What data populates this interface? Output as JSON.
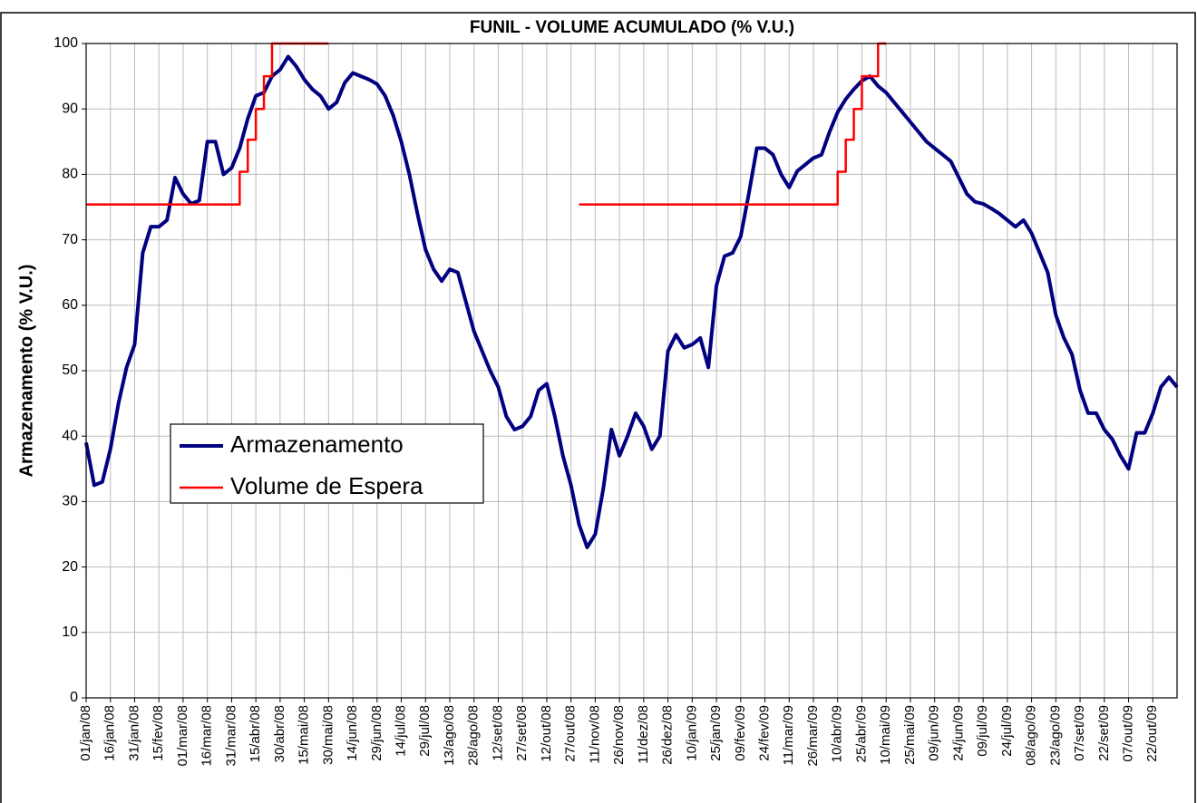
{
  "chart_data": {
    "type": "line",
    "title": "FUNIL - VOLUME ACUMULADO (% V.U.)",
    "y_label": "Armazenamento (% V.U.)",
    "categories": [
      "01/jan/08",
      null,
      null,
      "16/jan/08",
      null,
      null,
      "31/jan/08",
      null,
      null,
      "15/fev/08",
      null,
      null,
      "01/mar/08",
      null,
      null,
      "16/mar/08",
      null,
      null,
      "31/mar/08",
      null,
      null,
      "15/abr/08",
      null,
      null,
      "30/abr/08",
      null,
      null,
      "15/mai/08",
      null,
      null,
      "30/mai/08",
      null,
      null,
      "14/jun/08",
      null,
      null,
      "29/jun/08",
      null,
      null,
      "14/jul/08",
      null,
      null,
      "29/jul/08",
      null,
      null,
      "13/ago/08",
      null,
      null,
      "28/ago/08",
      null,
      null,
      "12/set/08",
      null,
      null,
      "27/set/08",
      null,
      null,
      "12/out/08",
      null,
      null,
      "27/out/08",
      null,
      null,
      "11/nov/08",
      null,
      null,
      "26/nov/08",
      null,
      null,
      "11/dez/08",
      null,
      null,
      "26/dez/08",
      null,
      null,
      "10/jan/09",
      null,
      null,
      "25/jan/09",
      null,
      null,
      "09/fev/09",
      null,
      null,
      "24/fev/09",
      null,
      null,
      "11/mar/09",
      null,
      null,
      "26/mar/09",
      null,
      null,
      "10/abr/09",
      null,
      null,
      "25/abr/09",
      null,
      null,
      "10/mai/09",
      null,
      null,
      "25/mai/09",
      null,
      null,
      "09/jun/09",
      null,
      null,
      "24/jun/09",
      null,
      null,
      "09/jul/09",
      null,
      null,
      "24/jul/09",
      null,
      null,
      "08/ago/09",
      null,
      null,
      "23/ago/09",
      null,
      null,
      "07/set/09",
      null,
      null,
      "22/set/09",
      null,
      null,
      "07/out/09",
      null,
      null,
      "22/out/09",
      null,
      null,
      null
    ],
    "series": [
      {
        "name": "Armazenamento",
        "color": "#000080",
        "width": 4,
        "values": [
          39,
          32.5,
          33,
          38,
          45,
          50.5,
          54,
          68,
          72,
          72,
          73,
          79.5,
          77,
          75.5,
          76,
          85,
          85,
          80,
          81,
          84,
          88.5,
          92,
          92.5,
          95,
          96,
          98,
          96.5,
          94.5,
          93,
          92,
          90,
          91,
          94,
          95.5,
          95,
          94.5,
          93.8,
          92,
          89,
          85,
          80,
          74,
          68.5,
          65.5,
          63.7,
          65.5,
          65,
          60.5,
          56,
          53,
          50,
          47.5,
          43,
          41,
          41.5,
          43,
          47,
          48,
          43,
          37,
          32.5,
          26.5,
          23,
          25,
          32,
          41,
          37,
          40,
          43.5,
          41.5,
          38,
          40,
          53,
          55.5,
          53.5,
          54,
          55,
          50.5,
          63,
          67.5,
          68,
          70.5,
          77,
          84,
          84,
          83,
          80,
          78,
          80.5,
          81.5,
          82.5,
          83,
          86.5,
          89.5,
          91.5,
          93,
          94.3,
          95,
          93.5,
          92.5,
          91,
          89.5,
          88,
          86.5,
          85,
          84,
          83,
          82,
          79.5,
          77,
          75.8,
          75.5,
          74.8,
          74,
          73,
          72,
          73,
          71,
          68,
          65,
          58.5,
          55,
          52.5,
          47,
          43.5,
          43.5,
          41,
          39.5,
          37,
          35,
          40.5,
          40.5,
          43.5,
          47.5,
          49,
          47.5
        ]
      },
      {
        "name": "Volume de Espera",
        "color": "#ff0000",
        "width": 2.5,
        "drawstyle": "steps-post",
        "values": [
          75.4,
          75.4,
          75.4,
          75.4,
          75.4,
          75.4,
          75.4,
          75.4,
          75.4,
          75.4,
          75.4,
          75.4,
          75.4,
          75.4,
          75.4,
          75.4,
          75.4,
          75.4,
          75.4,
          80.4,
          85.3,
          90,
          95,
          100,
          100,
          100,
          100,
          100,
          100,
          100,
          100,
          null,
          null,
          null,
          null,
          null,
          null,
          null,
          null,
          null,
          null,
          null,
          null,
          null,
          null,
          null,
          null,
          null,
          null,
          null,
          null,
          null,
          null,
          null,
          null,
          null,
          null,
          null,
          null,
          null,
          null,
          75.4,
          75.4,
          75.4,
          75.4,
          75.4,
          75.4,
          75.4,
          75.4,
          75.4,
          75.4,
          75.4,
          75.4,
          75.4,
          75.4,
          75.4,
          75.4,
          75.4,
          75.4,
          75.4,
          75.4,
          75.4,
          75.4,
          75.4,
          75.4,
          75.4,
          75.4,
          75.4,
          75.4,
          75.4,
          75.4,
          75.4,
          75.4,
          80.4,
          85.3,
          90,
          95,
          95,
          100,
          100,
          null,
          null,
          null,
          null,
          null,
          null,
          null,
          null,
          null,
          null,
          null,
          null,
          null,
          null,
          null,
          null,
          null,
          null,
          null,
          null,
          null,
          null,
          null,
          null,
          null,
          null,
          null,
          null,
          null,
          null,
          null,
          null,
          null,
          null,
          null,
          null
        ]
      }
    ],
    "ylim": [
      0,
      100
    ],
    "yticks": [
      0,
      10,
      20,
      30,
      40,
      50,
      60,
      70,
      80,
      90,
      100
    ],
    "grid": true,
    "legend": "left"
  }
}
